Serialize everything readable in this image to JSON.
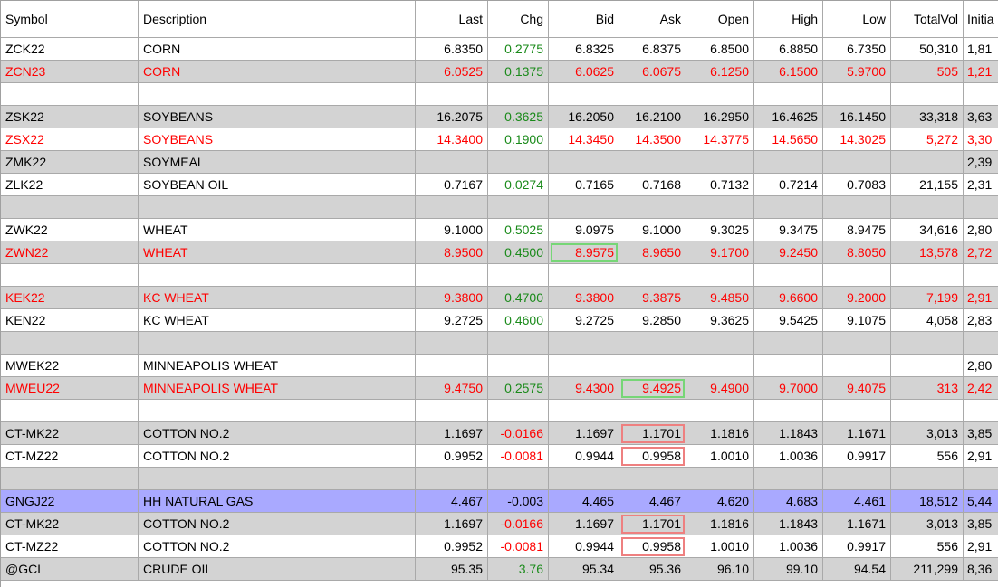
{
  "columns": [
    "Symbol",
    "Description",
    "Last",
    "Chg",
    "Bid",
    "Ask",
    "Open",
    "High",
    "Low",
    "TotalVol",
    "Initia"
  ],
  "colors": {
    "odd_row": "#ffffff",
    "even_row": "#d3d3d3",
    "selected_row": "#a9a9ff",
    "red_text": "#ff0000",
    "green_text": "#1a8a1a",
    "highlight_up": "#76d676",
    "highlight_down": "#ee8080"
  },
  "rows": [
    {
      "symbol": "ZCK22",
      "desc": "CORN",
      "last": "6.8350",
      "chg": "0.2775",
      "bid": "6.8325",
      "ask": "6.8375",
      "open": "6.8500",
      "high": "6.8850",
      "low": "6.7350",
      "vol": "50,310",
      "init": "1,81",
      "bg": "white",
      "red": false
    },
    {
      "symbol": "ZCN23",
      "desc": "CORN",
      "last": "6.0525",
      "chg": "0.1375",
      "bid": "6.0625",
      "ask": "6.0675",
      "open": "6.1250",
      "high": "6.1500",
      "low": "5.9700",
      "vol": "505",
      "init": "1,21",
      "bg": "gray",
      "red": true
    },
    {
      "symbol": "",
      "desc": "",
      "last": "",
      "chg": "",
      "bid": "",
      "ask": "",
      "open": "",
      "high": "",
      "low": "",
      "vol": "",
      "init": "",
      "bg": "white",
      "red": false
    },
    {
      "symbol": "ZSK22",
      "desc": "SOYBEANS",
      "last": "16.2075",
      "chg": "0.3625",
      "bid": "16.2050",
      "ask": "16.2100",
      "open": "16.2950",
      "high": "16.4625",
      "low": "16.1450",
      "vol": "33,318",
      "init": "3,63",
      "bg": "gray",
      "red": false
    },
    {
      "symbol": "ZSX22",
      "desc": "SOYBEANS",
      "last": "14.3400",
      "chg": "0.1900",
      "bid": "14.3450",
      "ask": "14.3500",
      "open": "14.3775",
      "high": "14.5650",
      "low": "14.3025",
      "vol": "5,272",
      "init": "3,30",
      "bg": "white",
      "red": true
    },
    {
      "symbol": "ZMK22",
      "desc": "SOYMEAL",
      "last": "",
      "chg": "",
      "bid": "",
      "ask": "",
      "open": "",
      "high": "",
      "low": "",
      "vol": "",
      "init": "2,39",
      "bg": "gray",
      "red": false
    },
    {
      "symbol": "ZLK22",
      "desc": "SOYBEAN OIL",
      "last": "0.7167",
      "chg": "0.0274",
      "bid": "0.7165",
      "ask": "0.7168",
      "open": "0.7132",
      "high": "0.7214",
      "low": "0.7083",
      "vol": "21,155",
      "init": "2,31",
      "bg": "white",
      "red": false
    },
    {
      "symbol": "",
      "desc": "",
      "last": "",
      "chg": "",
      "bid": "",
      "ask": "",
      "open": "",
      "high": "",
      "low": "",
      "vol": "",
      "init": "",
      "bg": "gray",
      "red": false
    },
    {
      "symbol": "ZWK22",
      "desc": "WHEAT",
      "last": "9.1000",
      "chg": "0.5025",
      "bid": "9.0975",
      "ask": "9.1000",
      "open": "9.3025",
      "high": "9.3475",
      "low": "8.9475",
      "vol": "34,616",
      "init": "2,80",
      "bg": "white",
      "red": false
    },
    {
      "symbol": "ZWN22",
      "desc": "WHEAT",
      "last": "8.9500",
      "chg": "0.4500",
      "bid": "8.9575",
      "ask": "8.9650",
      "open": "9.1700",
      "high": "9.2450",
      "low": "8.8050",
      "vol": "13,578",
      "init": "2,72",
      "bg": "gray",
      "red": true,
      "hl": {
        "bid": "up"
      }
    },
    {
      "symbol": "",
      "desc": "",
      "last": "",
      "chg": "",
      "bid": "",
      "ask": "",
      "open": "",
      "high": "",
      "low": "",
      "vol": "",
      "init": "",
      "bg": "white",
      "red": false
    },
    {
      "symbol": "KEK22",
      "desc": "KC WHEAT",
      "last": "9.3800",
      "chg": "0.4700",
      "bid": "9.3800",
      "ask": "9.3875",
      "open": "9.4850",
      "high": "9.6600",
      "low": "9.2000",
      "vol": "7,199",
      "init": "2,91",
      "bg": "gray",
      "red": true
    },
    {
      "symbol": "KEN22",
      "desc": "KC WHEAT",
      "last": "9.2725",
      "chg": "0.4600",
      "bid": "9.2725",
      "ask": "9.2850",
      "open": "9.3625",
      "high": "9.5425",
      "low": "9.1075",
      "vol": "4,058",
      "init": "2,83",
      "bg": "white",
      "red": false
    },
    {
      "symbol": "",
      "desc": "",
      "last": "",
      "chg": "",
      "bid": "",
      "ask": "",
      "open": "",
      "high": "",
      "low": "",
      "vol": "",
      "init": "",
      "bg": "gray",
      "red": false
    },
    {
      "symbol": "MWEK22",
      "desc": "MINNEAPOLIS WHEAT",
      "last": "",
      "chg": "",
      "bid": "",
      "ask": "",
      "open": "",
      "high": "",
      "low": "",
      "vol": "",
      "init": "2,80",
      "bg": "white",
      "red": false
    },
    {
      "symbol": "MWEU22",
      "desc": "MINNEAPOLIS WHEAT",
      "last": "9.4750",
      "chg": "0.2575",
      "bid": "9.4300",
      "ask": "9.4925",
      "open": "9.4900",
      "high": "9.7000",
      "low": "9.4075",
      "vol": "313",
      "init": "2,42",
      "bg": "gray",
      "red": true,
      "hl": {
        "ask": "up"
      }
    },
    {
      "symbol": "",
      "desc": "",
      "last": "",
      "chg": "",
      "bid": "",
      "ask": "",
      "open": "",
      "high": "",
      "low": "",
      "vol": "",
      "init": "",
      "bg": "white",
      "red": false
    },
    {
      "symbol": "CT-MK22",
      "desc": "COTTON NO.2",
      "last": "1.1697",
      "chg": "-0.0166",
      "bid": "1.1697",
      "ask": "1.1701",
      "open": "1.1816",
      "high": "1.1843",
      "low": "1.1671",
      "vol": "3,013",
      "init": "3,85",
      "bg": "gray",
      "red": false,
      "hl": {
        "ask": "down"
      }
    },
    {
      "symbol": "CT-MZ22",
      "desc": "COTTON NO.2",
      "last": "0.9952",
      "chg": "-0.0081",
      "bid": "0.9944",
      "ask": "0.9958",
      "open": "1.0010",
      "high": "1.0036",
      "low": "0.9917",
      "vol": "556",
      "init": "2,91",
      "bg": "white",
      "red": false,
      "hl": {
        "ask": "down"
      }
    },
    {
      "symbol": "",
      "desc": "",
      "last": "",
      "chg": "",
      "bid": "",
      "ask": "",
      "open": "",
      "high": "",
      "low": "",
      "vol": "",
      "init": "",
      "bg": "gray",
      "red": false
    },
    {
      "symbol": "GNGJ22",
      "desc": "HH NATURAL GAS",
      "last": "4.467",
      "chg": "-0.003",
      "bid": "4.465",
      "ask": "4.467",
      "open": "4.620",
      "high": "4.683",
      "low": "4.461",
      "vol": "18,512",
      "init": "5,44",
      "bg": "purple",
      "red": false,
      "selected": true
    },
    {
      "symbol": "CT-MK22",
      "desc": "COTTON NO.2",
      "last": "1.1697",
      "chg": "-0.0166",
      "bid": "1.1697",
      "ask": "1.1701",
      "open": "1.1816",
      "high": "1.1843",
      "low": "1.1671",
      "vol": "3,013",
      "init": "3,85",
      "bg": "gray",
      "red": false,
      "hl": {
        "ask": "down"
      }
    },
    {
      "symbol": "CT-MZ22",
      "desc": "COTTON NO.2",
      "last": "0.9952",
      "chg": "-0.0081",
      "bid": "0.9944",
      "ask": "0.9958",
      "open": "1.0010",
      "high": "1.0036",
      "low": "0.9917",
      "vol": "556",
      "init": "2,91",
      "bg": "white",
      "red": false,
      "hl": {
        "ask": "down"
      }
    },
    {
      "symbol": "@GCL",
      "desc": "CRUDE OIL",
      "last": "95.35",
      "chg": "3.76",
      "bid": "95.34",
      "ask": "95.36",
      "open": "96.10",
      "high": "99.10",
      "low": "94.54",
      "vol": "211,299",
      "init": "8,36",
      "bg": "gray",
      "red": false
    }
  ]
}
